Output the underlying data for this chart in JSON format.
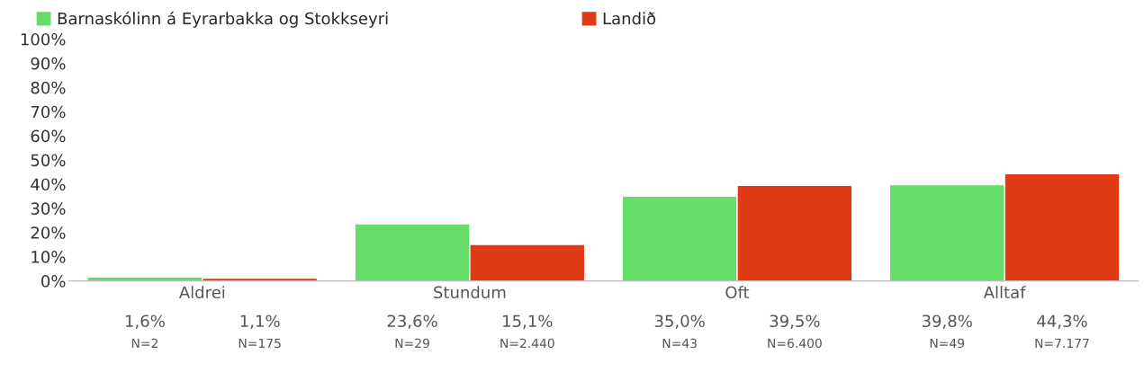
{
  "chart_data": {
    "type": "bar",
    "categories": [
      "Aldrei",
      "Stundum",
      "Oft",
      "Alltaf"
    ],
    "series": [
      {
        "name": "Barnaskólinn á Eyrarbakka og Stokkseyri",
        "color": "#66dd66",
        "values": [
          1.6,
          23.6,
          35.0,
          39.8
        ],
        "value_labels": [
          "1,6%\nN=2",
          "23,6%\nN=29",
          "35,0%\nN=43",
          "39,8%\nN=49"
        ]
      },
      {
        "name": "Landið",
        "color": "#e03a14",
        "values": [
          1.1,
          15.1,
          39.5,
          44.3
        ],
        "value_labels": [
          "1,1%\nN=175",
          "15,1%\nN=2.440",
          "39,5%\nN=6.400",
          "44,3%\nN=7.177"
        ]
      }
    ],
    "ylim": [
      0,
      100
    ],
    "yticks": [
      {
        "value": 0,
        "label": "0%"
      },
      {
        "value": 10,
        "label": "10%"
      },
      {
        "value": 20,
        "label": "20%"
      },
      {
        "value": 30,
        "label": "30%"
      },
      {
        "value": 40,
        "label": "40%"
      },
      {
        "value": 50,
        "label": "50%"
      },
      {
        "value": 60,
        "label": "60%"
      },
      {
        "value": 70,
        "label": "70%"
      },
      {
        "value": 80,
        "label": "80%"
      },
      {
        "value": 90,
        "label": "90%"
      },
      {
        "value": 100,
        "label": "100%"
      }
    ],
    "grid": false,
    "legend": "top left"
  }
}
